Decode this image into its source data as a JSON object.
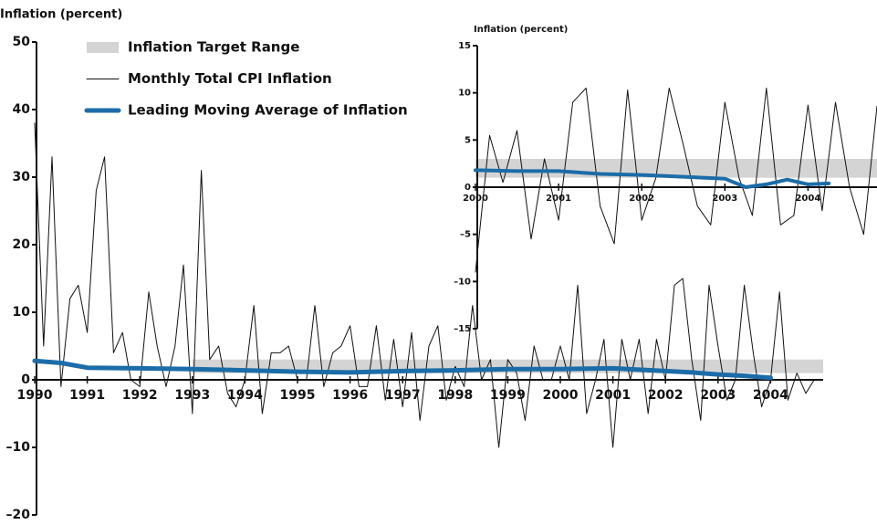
{
  "chart_data": [
    {
      "type": "line",
      "ylabel": "Inflation (percent)",
      "legend": "top-left",
      "xlim": [
        1990,
        2005
      ],
      "ylim": [
        -20,
        50
      ],
      "xticks": [
        1990,
        1991,
        1992,
        1993,
        1994,
        1995,
        1996,
        1997,
        1998,
        1999,
        2000,
        2001,
        2002,
        2003,
        2004
      ],
      "yticks": [
        {
          "value": -20,
          "label": "–20"
        },
        {
          "value": -10,
          "label": "–10"
        },
        0,
        10,
        20,
        30,
        40,
        50
      ],
      "series": [
        {
          "name": "Inflation Target Range",
          "kind": "band",
          "color": "#d4d4d4",
          "x": [
            1993,
            2005
          ],
          "low": [
            1,
            1
          ],
          "high": [
            3,
            3
          ]
        },
        {
          "name": "Monthly Total CPI Inflation",
          "kind": "line",
          "color": "#111111",
          "x": [
            1990,
            1990.17,
            1990.33,
            1990.5,
            1990.67,
            1990.83,
            1991,
            1991.17,
            1991.33,
            1991.5,
            1991.67,
            1991.83,
            1992,
            1992.17,
            1992.33,
            1992.5,
            1992.67,
            1992.83,
            1993,
            1993.17,
            1993.33,
            1993.5,
            1993.67,
            1993.83,
            1994,
            1994.17,
            1994.33,
            1994.5,
            1994.67,
            1994.83,
            1995,
            1995.17,
            1995.33,
            1995.5,
            1995.67,
            1995.83,
            1996,
            1996.17,
            1996.33,
            1996.5,
            1996.67,
            1996.83,
            1997,
            1997.17,
            1997.33,
            1997.5,
            1997.67,
            1997.83,
            1998,
            1998.17,
            1998.33,
            1998.5,
            1998.67,
            1998.83,
            1999,
            1999.17,
            1999.33,
            1999.5,
            1999.67,
            1999.83,
            2000,
            2000.17,
            2000.33,
            2000.5,
            2000.67,
            2000.83,
            2001,
            2001.17,
            2001.33,
            2001.5,
            2001.67,
            2001.83,
            2002,
            2002.17,
            2002.33,
            2002.5,
            2002.67,
            2002.83,
            2003,
            2003.17,
            2003.33,
            2003.5,
            2003.67,
            2003.83,
            2004,
            2004.17,
            2004.33,
            2004.5,
            2004.67,
            2004.83
          ],
          "values": [
            38,
            5,
            33,
            -1,
            12,
            14,
            7,
            28,
            33,
            4,
            7,
            0,
            -1,
            13,
            5,
            -1,
            5,
            17,
            -5,
            31,
            3,
            5,
            -2,
            -4,
            0,
            11,
            -5,
            4,
            4,
            5,
            0,
            0,
            11,
            -1,
            4,
            5,
            8,
            -1,
            -1,
            8,
            -3,
            6,
            -4,
            7,
            -6,
            5,
            8,
            -3,
            2,
            -1,
            11,
            0,
            3,
            -10,
            3,
            1,
            -6,
            5,
            0,
            0,
            5,
            0,
            14,
            -5,
            0,
            6,
            -10,
            6,
            0,
            6,
            -5,
            6,
            0,
            14,
            15,
            3,
            -6,
            14,
            5,
            -3,
            0,
            14,
            4,
            -4,
            0,
            13,
            -3,
            1,
            -2,
            0
          ]
        },
        {
          "name": "Leading Moving Average of Inflation",
          "kind": "line",
          "color": "#1b6ca8",
          "width": 5,
          "x": [
            1990,
            1990.5,
            1991,
            1992,
            1993,
            1994,
            1995,
            1996,
            1997,
            1998,
            1999,
            2000,
            2001,
            2002,
            2002.5,
            2003,
            2003.5,
            2004
          ],
          "values": [
            2.8,
            2.5,
            1.8,
            1.7,
            1.6,
            1.4,
            1.2,
            1.1,
            1.3,
            1.4,
            1.6,
            1.6,
            1.7,
            1.3,
            1.1,
            0.8,
            0.6,
            0.3
          ]
        }
      ]
    },
    {
      "type": "line",
      "ylabel": "Inflation (percent)",
      "xlim": [
        2000,
        2004.83
      ],
      "ylim": [
        -15,
        15
      ],
      "xticks": [
        2000,
        2001,
        2002,
        2003,
        2004
      ],
      "yticks": [
        {
          "value": -15,
          "label": "–15"
        },
        {
          "value": -10,
          "label": "–10"
        },
        {
          "value": -5,
          "label": "–5"
        },
        0,
        5,
        10,
        15
      ],
      "series": [
        {
          "kind": "band",
          "color": "#d4d4d4",
          "x": [
            2000,
            2004.83
          ],
          "low": [
            1,
            1
          ],
          "high": [
            3,
            3
          ]
        },
        {
          "kind": "line",
          "color": "#111111",
          "x": [
            2000,
            2000.17,
            2000.33,
            2000.5,
            2000.67,
            2000.83,
            2001,
            2001.17,
            2001.33,
            2001.5,
            2001.67,
            2001.83,
            2002,
            2002.17,
            2002.33,
            2002.5,
            2002.67,
            2002.83,
            2003,
            2003.17,
            2003.33,
            2003.5,
            2003.67,
            2003.83,
            2004,
            2004.17,
            2004.33,
            2004.5,
            2004.67,
            2004.83
          ],
          "values": [
            -9,
            5.5,
            0.5,
            6,
            -5.5,
            3,
            -3.5,
            9,
            10.5,
            -2,
            -6,
            10.3,
            -3.5,
            1,
            10.5,
            4.5,
            -2,
            -4,
            9,
            1,
            -3,
            10.5,
            -4,
            -3,
            8.7,
            -2.5,
            9,
            0,
            -5,
            8.6
          ]
        },
        {
          "kind": "line",
          "color": "#1b6ca8",
          "width": 4,
          "x": [
            2000,
            2000.5,
            2001,
            2001.5,
            2002,
            2002.5,
            2003,
            2003.25,
            2003.5,
            2003.75,
            2004,
            2004.25
          ],
          "values": [
            1.8,
            1.7,
            1.7,
            1.4,
            1.3,
            1.1,
            0.9,
            0,
            0.3,
            0.8,
            0.3,
            0.4
          ]
        }
      ]
    }
  ]
}
